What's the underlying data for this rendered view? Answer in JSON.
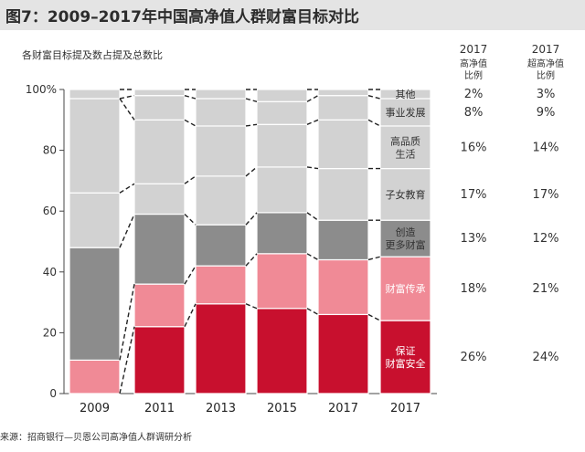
{
  "title": "图7：2009–2017年中国高净值人群财富目标对比",
  "source": "来源：招商银行—贝恩公司高净值人群调研分析",
  "colors": {
    "保证财富安全": "#c8102e",
    "财富传承": "#f08a96",
    "创造更多财富": "#8c8c8c",
    "子女教育": "#d2d2d2",
    "高品质生活": "#d2d2d2",
    "事业发展": "#d2d2d2",
    "其他": "#d2d2d2",
    "title_bar": "#e4e4e4"
  },
  "chart_data": {
    "type": "bar",
    "stacked": true,
    "ylabel": "各财富目标提及数占提及总数比",
    "ylim": [
      0,
      100
    ],
    "yticks": [
      "0",
      "20",
      "40",
      "60",
      "80",
      "100%"
    ],
    "yticks_values": [
      0,
      20,
      40,
      60,
      80,
      100
    ],
    "categories": [
      "2009",
      "2011",
      "2013",
      "2015",
      "2017",
      "2017"
    ],
    "series": [
      {
        "name": "保证财富安全",
        "values": [
          0,
          22,
          29.5,
          28,
          26,
          24
        ]
      },
      {
        "name": "财富传承",
        "values": [
          11,
          14,
          12.5,
          18,
          18,
          21
        ]
      },
      {
        "name": "创造更多财富",
        "values": [
          37,
          23,
          13.5,
          13.5,
          13,
          12
        ]
      },
      {
        "name": "子女教育",
        "values": [
          18,
          10,
          16,
          15,
          17,
          17
        ]
      },
      {
        "name": "高品质生活",
        "values": [
          31,
          21,
          16.5,
          14,
          16,
          14
        ]
      },
      {
        "name": "事业发展",
        "values": [
          0,
          8,
          9,
          7.5,
          8,
          9
        ]
      },
      {
        "name": "其他",
        "values": [
          3,
          2,
          3,
          4,
          2,
          3
        ]
      }
    ],
    "legend_labels": [
      {
        "series": "其他",
        "lines": [
          "其他"
        ]
      },
      {
        "series": "事业发展",
        "lines": [
          "事业发展"
        ]
      },
      {
        "series": "高品质生活",
        "lines": [
          "高品质",
          "生活"
        ]
      },
      {
        "series": "子女教育",
        "lines": [
          "子女教育"
        ]
      },
      {
        "series": "创造更多财富",
        "lines": [
          "创造",
          "更多财富"
        ]
      },
      {
        "series": "财富传承",
        "lines": [
          "财富传承"
        ]
      },
      {
        "series": "保证财富安全",
        "lines": [
          "保证",
          "财富安全"
        ]
      }
    ],
    "table": {
      "columns": [
        {
          "header": [
            "2017",
            "高净值",
            "比例"
          ]
        },
        {
          "header": [
            "2017",
            "超高净值",
            "比例"
          ]
        }
      ],
      "rows": [
        {
          "series": "其他",
          "values": [
            "2%",
            "3%"
          ]
        },
        {
          "series": "事业发展",
          "values": [
            "8%",
            "9%"
          ]
        },
        {
          "series": "高品质生活",
          "values": [
            "16%",
            "14%"
          ]
        },
        {
          "series": "子女教育",
          "values": [
            "17%",
            "17%"
          ]
        },
        {
          "series": "创造更多财富",
          "values": [
            "13%",
            "12%"
          ]
        },
        {
          "series": "财富传承",
          "values": [
            "18%",
            "21%"
          ]
        },
        {
          "series": "保证财富安全",
          "values": [
            "26%",
            "24%"
          ]
        }
      ]
    }
  }
}
